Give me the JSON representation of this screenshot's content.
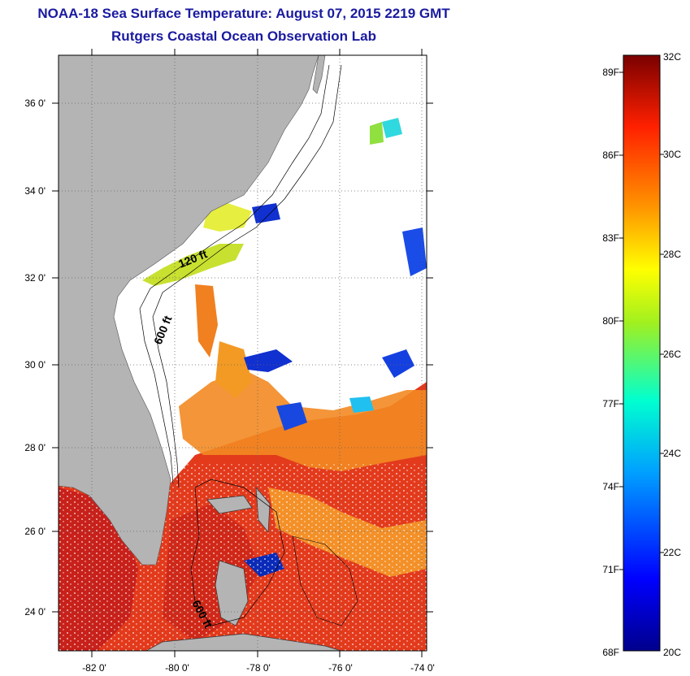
{
  "header": {
    "title": "NOAA-18 Sea Surface Temperature:  August 07, 2015 2219 GMT",
    "subtitle": "Rutgers Coastal Ocean Observation Lab"
  },
  "map": {
    "lon_labels": [
      "-82 0'",
      "-80 0'",
      "-78 0'",
      "-76 0'",
      "-74 0'"
    ],
    "lat_labels": [
      "36 0'",
      "34 0'",
      "32 0'",
      "30 0'",
      "28 0'",
      "26 0'",
      "24 0'"
    ],
    "contour_labels": [
      "120 ft",
      "600 ft",
      "600 ft"
    ],
    "colors": {
      "land": "#b4b4b4",
      "cloud": "#ffffff",
      "ocean_warm": "#e0301a",
      "ocean_hot": "#c81e14",
      "ocean_mid": "#f7a020"
    }
  },
  "colorbar": {
    "celsius": [
      "32C",
      "30C",
      "28C",
      "26C",
      "24C",
      "22C",
      "20C"
    ],
    "fahrenheit": [
      "89F",
      "86F",
      "83F",
      "80F",
      "77F",
      "74F",
      "71F",
      "68F"
    ],
    "range_c": [
      20,
      32
    ]
  }
}
